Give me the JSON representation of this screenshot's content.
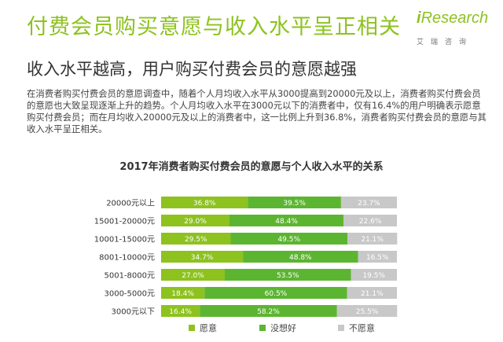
{
  "headline": "付费会员购买意愿与收入水平呈正相关",
  "logo": {
    "word_i": "i",
    "word_rest": "Research",
    "sub": "艾瑞咨询"
  },
  "subheadline": "收入水平越高，用户购买付费会员的意愿越强",
  "intro": "在消费者购买付费会员的意愿调查中，随着个人月均收入水平从3000提高到20000元及以上，消费者购买付费会员的意愿也大致呈现逐渐上升的趋势。个人月均收入水平在3000元以下的消费者中，仅有16.4%的用户明确表示愿意购买付费会员；而在月均收入20000元及以上的消费者中，这一比例上升到36.8%，消费者购买付费会员的意愿与其收入水平呈正相关。",
  "colors": {
    "accent": "#8dc21f"
  },
  "chart_data": {
    "type": "bar",
    "orientation": "horizontal",
    "stacked": true,
    "percent": true,
    "title": "2017年消费者购买付费会员的意愿与个人收入水平的关系",
    "xlabel": "",
    "ylabel": "",
    "xlim": [
      0,
      100
    ],
    "grid": false,
    "legend_position": "bottom",
    "categories": [
      "20000元以上",
      "15001-20000元",
      "10001-15000元",
      "8001-10000元",
      "5001-8000元",
      "3000-5000元",
      "3000元以下"
    ],
    "series": [
      {
        "name": "愿意",
        "color": "#8dc21f",
        "values": [
          36.8,
          29.0,
          29.5,
          34.7,
          27.0,
          18.4,
          16.4
        ],
        "labels": [
          "36.8%",
          "29.0%",
          "29.5%",
          "34.7%",
          "27.0%",
          "18.4%",
          "16.4%"
        ]
      },
      {
        "name": "没想好",
        "color": "#5cb531",
        "values": [
          39.5,
          48.4,
          49.5,
          48.8,
          53.5,
          60.5,
          58.2
        ],
        "labels": [
          "39.5%",
          "48.4%",
          "49.5%",
          "48.8%",
          "53.5%",
          "60.5%",
          "58.2%"
        ]
      },
      {
        "name": "不愿意",
        "color": "#c8c8c8",
        "values": [
          23.7,
          22.6,
          21.1,
          16.5,
          19.5,
          21.1,
          25.5
        ],
        "labels": [
          "23.7%",
          "22.6%",
          "21.1%",
          "16.5%",
          "19.5%",
          "21.1%",
          "25.5%"
        ]
      }
    ]
  }
}
